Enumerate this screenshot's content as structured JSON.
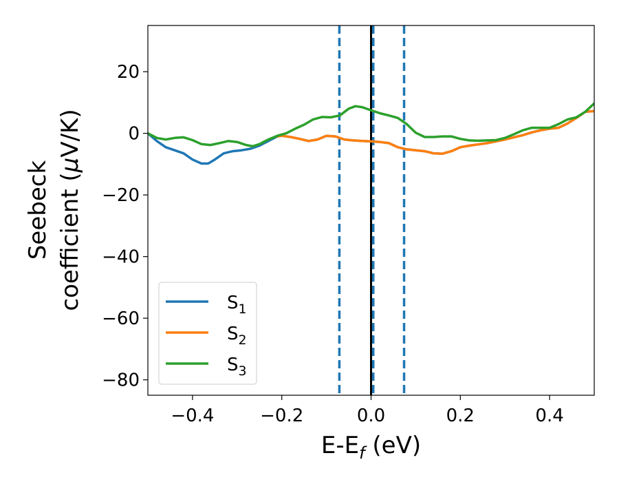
{
  "chart_data": {
    "type": "line",
    "xlabel": {
      "main": "E-E",
      "sub": "f",
      "tail": " (eV)"
    },
    "ylabel": {
      "line1": "Seebeck",
      "line2_pre": "coefficient  (",
      "line2_mu": "μ",
      "line2_post": "V/K)"
    },
    "xlim": [
      -0.5,
      0.5
    ],
    "ylim": [
      -85,
      35
    ],
    "xticks": [
      {
        "value": -0.4,
        "label": "−0.4"
      },
      {
        "value": -0.2,
        "label": "−0.2"
      },
      {
        "value": 0.0,
        "label": "0.0"
      },
      {
        "value": 0.2,
        "label": "0.2"
      },
      {
        "value": 0.4,
        "label": "0.4"
      }
    ],
    "yticks": [
      {
        "value": 20,
        "label": "20"
      },
      {
        "value": 0,
        "label": "0"
      },
      {
        "value": -20,
        "label": "−20"
      },
      {
        "value": -40,
        "label": "−40"
      },
      {
        "value": -60,
        "label": "−60"
      },
      {
        "value": -80,
        "label": "−80"
      }
    ],
    "legend_position": "lower-left",
    "vlines": [
      {
        "x": -0.071,
        "style": "dashed",
        "color": "#1f77b4"
      },
      {
        "x": 0.0,
        "style": "solid",
        "color": "#000000"
      },
      {
        "x": 0.005,
        "style": "dashed",
        "color": "#1f77b4"
      },
      {
        "x": 0.074,
        "style": "dashed",
        "color": "#1f77b4"
      }
    ],
    "series": [
      {
        "name_main": "S",
        "name_sub": "1",
        "color": "#1f77b4",
        "points": [
          [
            -0.5,
            0
          ],
          [
            -0.48,
            -2.5
          ],
          [
            -0.46,
            -4.5
          ],
          [
            -0.44,
            -5.5
          ],
          [
            -0.42,
            -6.5
          ],
          [
            -0.4,
            -8.5
          ],
          [
            -0.38,
            -9.8
          ],
          [
            -0.365,
            -9.8
          ],
          [
            -0.35,
            -8.5
          ],
          [
            -0.33,
            -6.5
          ],
          [
            -0.31,
            -5.8
          ],
          [
            -0.29,
            -5.5
          ],
          [
            -0.27,
            -5.0
          ],
          [
            -0.25,
            -4.0
          ],
          [
            -0.23,
            -2.5
          ],
          [
            -0.21,
            -1.0
          ],
          [
            -0.2,
            -0.8
          ],
          [
            -0.18,
            -1.2
          ],
          [
            -0.16,
            -1.8
          ],
          [
            -0.14,
            -2.5
          ],
          [
            -0.12,
            -2.0
          ],
          [
            -0.1,
            -0.8
          ],
          [
            -0.08,
            -1.0
          ],
          [
            -0.06,
            -2.0
          ],
          [
            -0.04,
            -2.3
          ],
          [
            -0.02,
            -2.5
          ],
          [
            0.0,
            -2.6
          ],
          [
            0.02,
            -2.8
          ],
          [
            0.04,
            -3.2
          ],
          [
            0.06,
            -4.5
          ],
          [
            0.08,
            -5.2
          ],
          [
            0.1,
            -5.5
          ],
          [
            0.12,
            -5.8
          ],
          [
            0.14,
            -6.5
          ],
          [
            0.16,
            -6.6
          ],
          [
            0.18,
            -5.8
          ],
          [
            0.2,
            -4.5
          ],
          [
            0.22,
            -4.0
          ],
          [
            0.24,
            -3.6
          ],
          [
            0.26,
            -3.2
          ],
          [
            0.28,
            -2.6
          ],
          [
            0.3,
            -2.0
          ],
          [
            0.32,
            -1.3
          ],
          [
            0.34,
            -0.6
          ],
          [
            0.36,
            0.3
          ],
          [
            0.38,
            1.0
          ],
          [
            0.4,
            1.5
          ],
          [
            0.42,
            1.8
          ],
          [
            0.44,
            3.2
          ],
          [
            0.46,
            5.0
          ],
          [
            0.48,
            7.0
          ],
          [
            0.5,
            7.2
          ]
        ]
      },
      {
        "name_main": "S",
        "name_sub": "2",
        "color": "#ff7f0e",
        "points": [
          [
            -0.21,
            -1.0
          ],
          [
            -0.2,
            -0.8
          ],
          [
            -0.18,
            -1.2
          ],
          [
            -0.16,
            -1.8
          ],
          [
            -0.14,
            -2.5
          ],
          [
            -0.12,
            -2.0
          ],
          [
            -0.1,
            -0.8
          ],
          [
            -0.08,
            -1.0
          ],
          [
            -0.06,
            -2.0
          ],
          [
            -0.04,
            -2.3
          ],
          [
            -0.02,
            -2.5
          ],
          [
            0.0,
            -2.6
          ],
          [
            0.02,
            -2.8
          ],
          [
            0.04,
            -3.2
          ],
          [
            0.06,
            -4.5
          ],
          [
            0.08,
            -5.2
          ],
          [
            0.1,
            -5.5
          ],
          [
            0.12,
            -5.8
          ],
          [
            0.14,
            -6.5
          ],
          [
            0.16,
            -6.6
          ],
          [
            0.18,
            -5.8
          ],
          [
            0.2,
            -4.5
          ],
          [
            0.22,
            -4.0
          ],
          [
            0.24,
            -3.6
          ],
          [
            0.26,
            -3.2
          ],
          [
            0.28,
            -2.6
          ],
          [
            0.3,
            -2.0
          ],
          [
            0.32,
            -1.3
          ],
          [
            0.34,
            -0.6
          ],
          [
            0.36,
            0.3
          ],
          [
            0.38,
            1.0
          ],
          [
            0.4,
            1.5
          ],
          [
            0.42,
            1.8
          ],
          [
            0.44,
            3.2
          ],
          [
            0.46,
            5.0
          ],
          [
            0.48,
            7.0
          ],
          [
            0.5,
            7.2
          ]
        ]
      },
      {
        "name_main": "S",
        "name_sub": "3",
        "color": "#2ca02c",
        "points": [
          [
            -0.5,
            0
          ],
          [
            -0.48,
            -1.5
          ],
          [
            -0.46,
            -2.0
          ],
          [
            -0.44,
            -1.5
          ],
          [
            -0.42,
            -1.3
          ],
          [
            -0.4,
            -2.2
          ],
          [
            -0.38,
            -3.5
          ],
          [
            -0.36,
            -3.8
          ],
          [
            -0.34,
            -3.2
          ],
          [
            -0.32,
            -2.5
          ],
          [
            -0.3,
            -2.8
          ],
          [
            -0.28,
            -3.8
          ],
          [
            -0.265,
            -4.2
          ],
          [
            -0.25,
            -3.5
          ],
          [
            -0.23,
            -2.0
          ],
          [
            -0.21,
            -0.8
          ],
          [
            -0.19,
            0.0
          ],
          [
            -0.17,
            1.5
          ],
          [
            -0.15,
            2.8
          ],
          [
            -0.13,
            4.5
          ],
          [
            -0.11,
            5.3
          ],
          [
            -0.09,
            5.2
          ],
          [
            -0.07,
            5.8
          ],
          [
            -0.05,
            8.0
          ],
          [
            -0.035,
            8.8
          ],
          [
            -0.02,
            8.5
          ],
          [
            0.0,
            7.5
          ],
          [
            0.02,
            6.5
          ],
          [
            0.04,
            5.8
          ],
          [
            0.06,
            5.0
          ],
          [
            0.08,
            3.0
          ],
          [
            0.1,
            0.2
          ],
          [
            0.12,
            -1.2
          ],
          [
            0.14,
            -1.2
          ],
          [
            0.16,
            -1.0
          ],
          [
            0.18,
            -1.0
          ],
          [
            0.2,
            -1.8
          ],
          [
            0.22,
            -2.3
          ],
          [
            0.24,
            -2.4
          ],
          [
            0.26,
            -2.3
          ],
          [
            0.28,
            -2.2
          ],
          [
            0.3,
            -1.5
          ],
          [
            0.32,
            -0.3
          ],
          [
            0.34,
            1.0
          ],
          [
            0.36,
            1.8
          ],
          [
            0.38,
            1.8
          ],
          [
            0.4,
            1.8
          ],
          [
            0.42,
            3.0
          ],
          [
            0.44,
            4.5
          ],
          [
            0.46,
            5.2
          ],
          [
            0.48,
            7.0
          ],
          [
            0.5,
            9.7
          ]
        ]
      }
    ]
  }
}
